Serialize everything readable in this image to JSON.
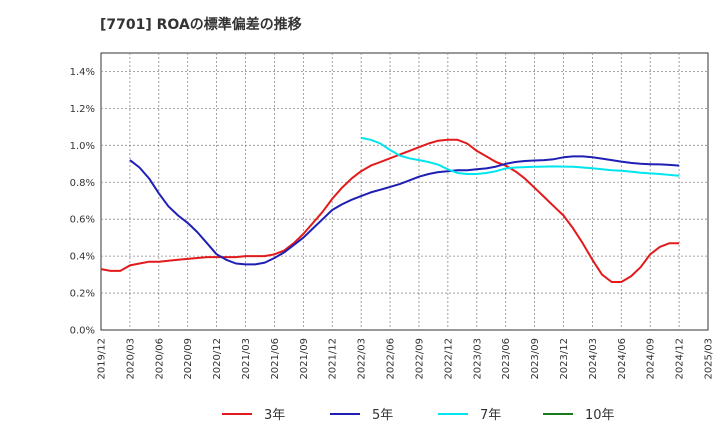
{
  "chart_data": {
    "type": "line",
    "title": "[7701]  ROAの標準偏差の推移",
    "xlabel": "",
    "ylabel": "",
    "ylim": [
      0,
      1.5
    ],
    "y_ticks": [
      "0.0%",
      "0.2%",
      "0.4%",
      "0.6%",
      "0.8%",
      "1.0%",
      "1.2%",
      "1.4%"
    ],
    "x_ticks": [
      "2019/12",
      "2020/03",
      "2020/06",
      "2020/09",
      "2020/12",
      "2021/03",
      "2021/06",
      "2021/09",
      "2021/12",
      "2022/03",
      "2022/06",
      "2022/09",
      "2022/12",
      "2023/03",
      "2023/06",
      "2023/09",
      "2023/12",
      "2024/03",
      "2024/06",
      "2024/09",
      "2024/12",
      "2025/03"
    ],
    "grid": true,
    "legend_position": "bottom",
    "series": [
      {
        "name": "3年",
        "color": "#e31a1c",
        "data": [
          [
            "2019/12",
            0.33
          ],
          [
            "2020/01",
            0.32
          ],
          [
            "2020/02",
            0.32
          ],
          [
            "2020/03",
            0.35
          ],
          [
            "2020/04",
            0.36
          ],
          [
            "2020/05",
            0.37
          ],
          [
            "2020/06",
            0.37
          ],
          [
            "2020/07",
            0.375
          ],
          [
            "2020/08",
            0.38
          ],
          [
            "2020/09",
            0.385
          ],
          [
            "2020/10",
            0.39
          ],
          [
            "2020/11",
            0.395
          ],
          [
            "2020/12",
            0.395
          ],
          [
            "2021/01",
            0.395
          ],
          [
            "2021/02",
            0.395
          ],
          [
            "2021/03",
            0.4
          ],
          [
            "2021/04",
            0.4
          ],
          [
            "2021/05",
            0.4
          ],
          [
            "2021/06",
            0.41
          ],
          [
            "2021/07",
            0.43
          ],
          [
            "2021/08",
            0.47
          ],
          [
            "2021/09",
            0.52
          ],
          [
            "2021/10",
            0.58
          ],
          [
            "2021/11",
            0.64
          ],
          [
            "2021/12",
            0.71
          ],
          [
            "2022/01",
            0.77
          ],
          [
            "2022/02",
            0.82
          ],
          [
            "2022/03",
            0.86
          ],
          [
            "2022/04",
            0.89
          ],
          [
            "2022/05",
            0.91
          ],
          [
            "2022/06",
            0.93
          ],
          [
            "2022/07",
            0.95
          ],
          [
            "2022/08",
            0.97
          ],
          [
            "2022/09",
            0.99
          ],
          [
            "2022/10",
            1.01
          ],
          [
            "2022/11",
            1.025
          ],
          [
            "2022/12",
            1.03
          ],
          [
            "2023/01",
            1.03
          ],
          [
            "2023/02",
            1.01
          ],
          [
            "2023/03",
            0.97
          ],
          [
            "2023/04",
            0.94
          ],
          [
            "2023/05",
            0.91
          ],
          [
            "2023/06",
            0.89
          ],
          [
            "2023/07",
            0.86
          ],
          [
            "2023/08",
            0.82
          ],
          [
            "2023/09",
            0.77
          ],
          [
            "2023/10",
            0.72
          ],
          [
            "2023/11",
            0.67
          ],
          [
            "2023/12",
            0.62
          ],
          [
            "2024/01",
            0.55
          ],
          [
            "2024/02",
            0.47
          ],
          [
            "2024/03",
            0.38
          ],
          [
            "2024/04",
            0.3
          ],
          [
            "2024/05",
            0.26
          ],
          [
            "2024/06",
            0.26
          ],
          [
            "2024/07",
            0.29
          ],
          [
            "2024/08",
            0.34
          ],
          [
            "2024/09",
            0.41
          ],
          [
            "2024/10",
            0.45
          ],
          [
            "2024/11",
            0.47
          ],
          [
            "2024/12",
            0.47
          ]
        ]
      },
      {
        "name": "5年",
        "color": "#1f1fb4",
        "data": [
          [
            "2020/03",
            0.92
          ],
          [
            "2020/04",
            0.88
          ],
          [
            "2020/05",
            0.82
          ],
          [
            "2020/06",
            0.74
          ],
          [
            "2020/07",
            0.67
          ],
          [
            "2020/08",
            0.62
          ],
          [
            "2020/09",
            0.58
          ],
          [
            "2020/10",
            0.53
          ],
          [
            "2020/11",
            0.47
          ],
          [
            "2020/12",
            0.41
          ],
          [
            "2021/01",
            0.38
          ],
          [
            "2021/02",
            0.36
          ],
          [
            "2021/03",
            0.355
          ],
          [
            "2021/04",
            0.355
          ],
          [
            "2021/05",
            0.365
          ],
          [
            "2021/06",
            0.39
          ],
          [
            "2021/07",
            0.42
          ],
          [
            "2021/08",
            0.46
          ],
          [
            "2021/09",
            0.5
          ],
          [
            "2021/10",
            0.55
          ],
          [
            "2021/11",
            0.6
          ],
          [
            "2021/12",
            0.65
          ],
          [
            "2022/01",
            0.68
          ],
          [
            "2022/02",
            0.705
          ],
          [
            "2022/03",
            0.725
          ],
          [
            "2022/04",
            0.745
          ],
          [
            "2022/05",
            0.76
          ],
          [
            "2022/06",
            0.775
          ],
          [
            "2022/07",
            0.79
          ],
          [
            "2022/08",
            0.81
          ],
          [
            "2022/09",
            0.83
          ],
          [
            "2022/10",
            0.845
          ],
          [
            "2022/11",
            0.855
          ],
          [
            "2022/12",
            0.86
          ],
          [
            "2023/01",
            0.865
          ],
          [
            "2023/02",
            0.865
          ],
          [
            "2023/03",
            0.87
          ],
          [
            "2023/04",
            0.875
          ],
          [
            "2023/05",
            0.885
          ],
          [
            "2023/06",
            0.9
          ],
          [
            "2023/07",
            0.91
          ],
          [
            "2023/08",
            0.915
          ],
          [
            "2023/09",
            0.918
          ],
          [
            "2023/10",
            0.92
          ],
          [
            "2023/11",
            0.925
          ],
          [
            "2023/12",
            0.935
          ],
          [
            "2024/01",
            0.94
          ],
          [
            "2024/02",
            0.94
          ],
          [
            "2024/03",
            0.935
          ],
          [
            "2024/04",
            0.928
          ],
          [
            "2024/05",
            0.92
          ],
          [
            "2024/06",
            0.912
          ],
          [
            "2024/07",
            0.905
          ],
          [
            "2024/08",
            0.9
          ],
          [
            "2024/09",
            0.898
          ],
          [
            "2024/10",
            0.897
          ],
          [
            "2024/11",
            0.894
          ],
          [
            "2024/12",
            0.89
          ]
        ]
      },
      {
        "name": "7年",
        "color": "#00e5ee",
        "data": [
          [
            "2022/03",
            1.04
          ],
          [
            "2022/04",
            1.03
          ],
          [
            "2022/05",
            1.01
          ],
          [
            "2022/06",
            0.975
          ],
          [
            "2022/07",
            0.945
          ],
          [
            "2022/08",
            0.93
          ],
          [
            "2022/09",
            0.92
          ],
          [
            "2022/10",
            0.91
          ],
          [
            "2022/11",
            0.895
          ],
          [
            "2022/12",
            0.87
          ],
          [
            "2023/01",
            0.85
          ],
          [
            "2023/02",
            0.845
          ],
          [
            "2023/03",
            0.845
          ],
          [
            "2023/04",
            0.85
          ],
          [
            "2023/05",
            0.86
          ],
          [
            "2023/06",
            0.875
          ],
          [
            "2023/07",
            0.88
          ],
          [
            "2023/08",
            0.882
          ],
          [
            "2023/09",
            0.884
          ],
          [
            "2023/10",
            0.885
          ],
          [
            "2023/11",
            0.886
          ],
          [
            "2023/12",
            0.885
          ],
          [
            "2024/01",
            0.884
          ],
          [
            "2024/02",
            0.88
          ],
          [
            "2024/03",
            0.876
          ],
          [
            "2024/04",
            0.87
          ],
          [
            "2024/05",
            0.865
          ],
          [
            "2024/06",
            0.862
          ],
          [
            "2024/07",
            0.858
          ],
          [
            "2024/08",
            0.852
          ],
          [
            "2024/09",
            0.848
          ],
          [
            "2024/10",
            0.845
          ],
          [
            "2024/11",
            0.84
          ],
          [
            "2024/12",
            0.835
          ]
        ]
      },
      {
        "name": "10年",
        "color": "#1a7a1a",
        "data": []
      }
    ]
  }
}
